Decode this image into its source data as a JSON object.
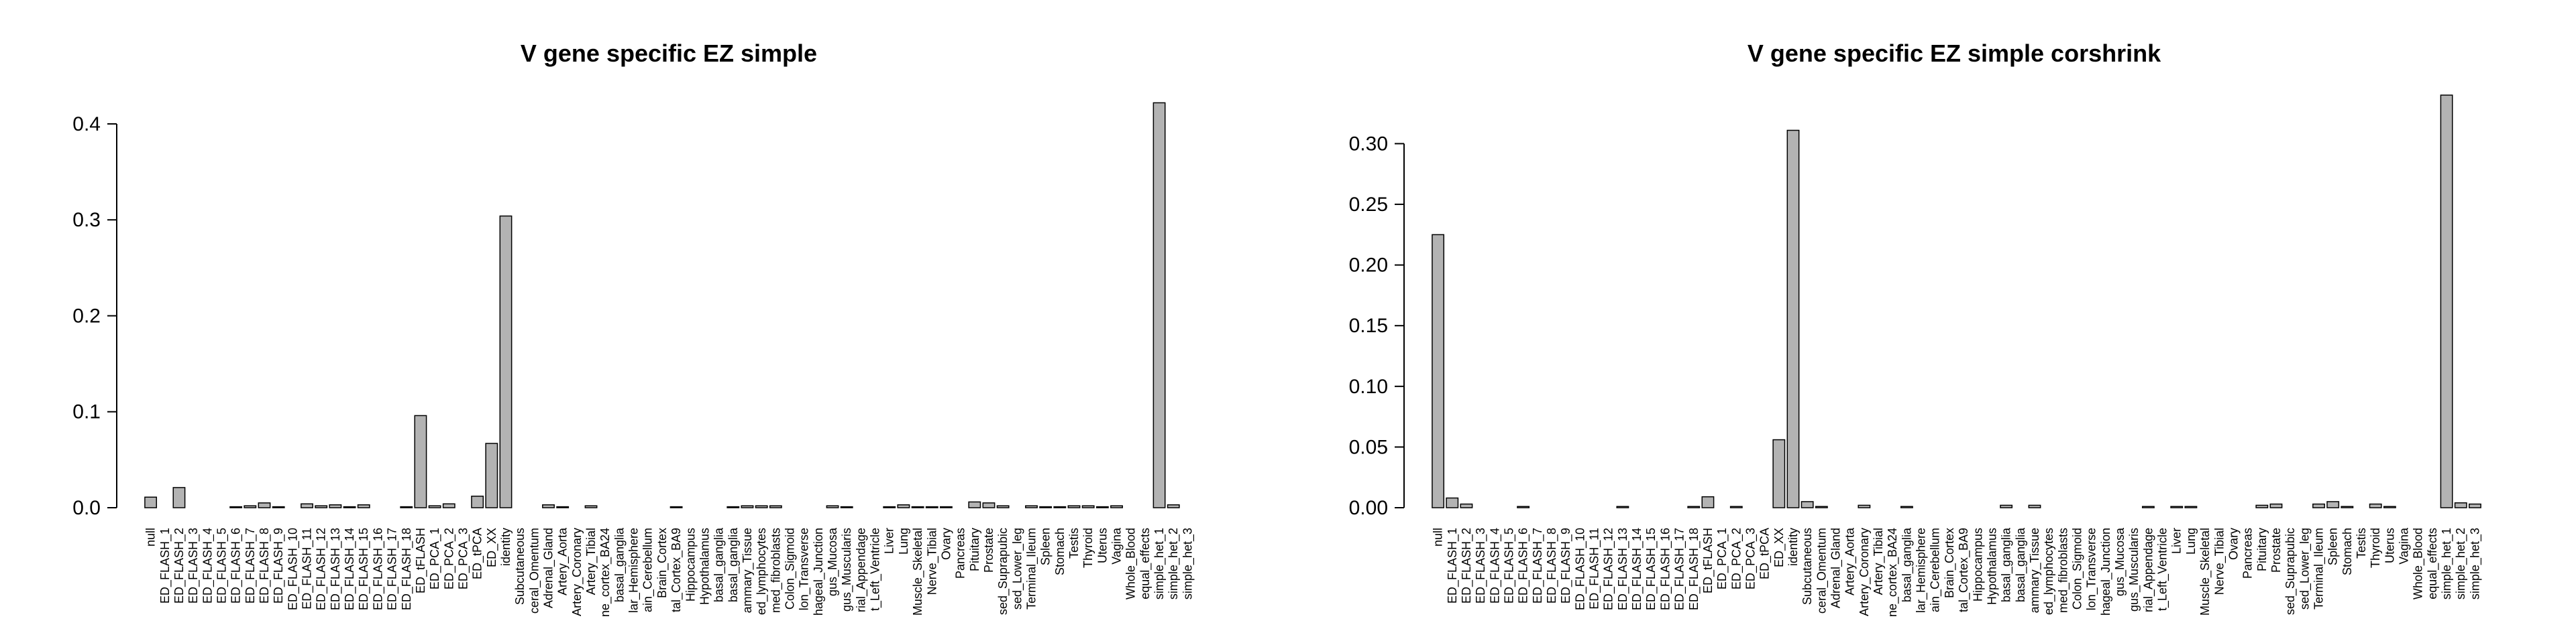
{
  "chart_data": [
    {
      "type": "bar",
      "title": "V gene specific EZ simple",
      "xlabel": "",
      "ylabel": "",
      "ylim": [
        0,
        0.43
      ],
      "yticks": [
        0.0,
        0.1,
        0.2,
        0.3,
        0.4
      ],
      "ytick_labels": [
        "0.0",
        "0.1",
        "0.2",
        "0.3",
        "0.4"
      ],
      "bar_color": "#b3b3b3",
      "categories": [
        "null",
        "ED_FLASH_1",
        "ED_FLASH_2",
        "ED_FLASH_3",
        "ED_FLASH_4",
        "ED_FLASH_5",
        "ED_FLASH_6",
        "ED_FLASH_7",
        "ED_FLASH_8",
        "ED_FLASH_9",
        "ED_FLASH_10",
        "ED_FLASH_11",
        "ED_FLASH_12",
        "ED_FLASH_13",
        "ED_FLASH_14",
        "ED_FLASH_15",
        "ED_FLASH_16",
        "ED_FLASH_17",
        "ED_FLASH_18",
        "ED_tFLASH",
        "ED_PCA_1",
        "ED_PCA_2",
        "ED_PCA_3",
        "ED_tPCA",
        "ED_XX",
        "identity",
        "Subcutaneous",
        "ceral_Omentum",
        "Adrenal_Gland",
        "Artery_Aorta",
        "Artery_Coronary",
        "Artery_Tibial",
        "ne_cortex_BA24",
        "basal_ganglia",
        "lar_Hemisphere",
        "ain_Cerebellum",
        "Brain_Cortex",
        "tal_Cortex_BA9",
        "Hippocampus",
        "Hypothalamus",
        "basal_ganglia",
        "basal_ganglia",
        "ammary_Tissue",
        "ed_lymphocytes",
        "med_fibroblasts",
        "Colon_Sigmoid",
        "lon_Transverse",
        "hageal_Junction",
        "gus_Mucosa",
        "gus_Muscularis",
        "rial_Appendage",
        "t_Left_Ventricle",
        "Liver",
        "Lung",
        "Muscle_Skeletal",
        "Nerve_Tibial",
        "Ovary",
        "Pancreas",
        "Pituitary",
        "Prostate",
        "sed_Suprapubic",
        "sed_Lower_leg",
        "Terminal_Ileum",
        "Spleen",
        "Stomach",
        "Testis",
        "Thyroid",
        "Uterus",
        "Vagina",
        "Whole_Blood",
        "equal_effects",
        "simple_het_1",
        "simple_het_2",
        "simple_het_3"
      ],
      "values": [
        0.011,
        0.0,
        0.021,
        0.0,
        0.0,
        0.0,
        0.001,
        0.002,
        0.005,
        0.001,
        0.0,
        0.004,
        0.002,
        0.003,
        0.001,
        0.003,
        0.0,
        0.0,
        0.001,
        0.096,
        0.002,
        0.004,
        0.0,
        0.012,
        0.067,
        0.304,
        0.0,
        0.0,
        0.003,
        0.001,
        0.0,
        0.002,
        0.0,
        0.0,
        0.0,
        0.0,
        0.0,
        0.001,
        0.0,
        0.0,
        0.0,
        0.001,
        0.002,
        0.002,
        0.002,
        0.0,
        0.0,
        0.0,
        0.002,
        0.001,
        0.0,
        0.0,
        0.001,
        0.003,
        0.001,
        0.001,
        0.001,
        0.0,
        0.006,
        0.005,
        0.002,
        0.0,
        0.002,
        0.001,
        0.001,
        0.002,
        0.002,
        0.001,
        0.002,
        0.0,
        0.0,
        0.422,
        0.003,
        0.0
      ]
    },
    {
      "type": "bar",
      "title": "V gene specific EZ simple corshrink",
      "xlabel": "",
      "ylabel": "",
      "ylim": [
        0,
        0.34
      ],
      "yticks": [
        0.0,
        0.05,
        0.1,
        0.15,
        0.2,
        0.25,
        0.3
      ],
      "ytick_labels": [
        "0.00",
        "0.05",
        "0.10",
        "0.15",
        "0.20",
        "0.25",
        "0.30"
      ],
      "bar_color": "#b3b3b3",
      "categories": [
        "null",
        "ED_FLASH_1",
        "ED_FLASH_2",
        "ED_FLASH_3",
        "ED_FLASH_4",
        "ED_FLASH_5",
        "ED_FLASH_6",
        "ED_FLASH_7",
        "ED_FLASH_8",
        "ED_FLASH_9",
        "ED_FLASH_10",
        "ED_FLASH_11",
        "ED_FLASH_12",
        "ED_FLASH_13",
        "ED_FLASH_14",
        "ED_FLASH_15",
        "ED_FLASH_16",
        "ED_FLASH_17",
        "ED_FLASH_18",
        "ED_tFLASH",
        "ED_PCA_1",
        "ED_PCA_2",
        "ED_PCA_3",
        "ED_tPCA",
        "ED_XX",
        "identity",
        "Subcutaneous",
        "ceral_Omentum",
        "Adrenal_Gland",
        "Artery_Aorta",
        "Artery_Coronary",
        "Artery_Tibial",
        "ne_cortex_BA24",
        "basal_ganglia",
        "lar_Hemisphere",
        "ain_Cerebellum",
        "Brain_Cortex",
        "tal_Cortex_BA9",
        "Hippocampus",
        "Hypothalamus",
        "basal_ganglia",
        "basal_ganglia",
        "ammary_Tissue",
        "ed_lymphocytes",
        "med_fibroblasts",
        "Colon_Sigmoid",
        "lon_Transverse",
        "hageal_Junction",
        "gus_Mucosa",
        "gus_Muscularis",
        "rial_Appendage",
        "t_Left_Ventricle",
        "Liver",
        "Lung",
        "Muscle_Skeletal",
        "Nerve_Tibial",
        "Ovary",
        "Pancreas",
        "Pituitary",
        "Prostate",
        "sed_Suprapubic",
        "sed_Lower_leg",
        "Terminal_Ileum",
        "Spleen",
        "Stomach",
        "Testis",
        "Thyroid",
        "Uterus",
        "Vagina",
        "Whole_Blood",
        "equal_effects",
        "simple_het_1",
        "simple_het_2",
        "simple_het_3"
      ],
      "values": [
        0.225,
        0.008,
        0.003,
        0.0,
        0.0,
        0.0,
        0.001,
        0.0,
        0.0,
        0.0,
        0.0,
        0.0,
        0.0,
        0.001,
        0.0,
        0.0,
        0.0,
        0.0,
        0.001,
        0.009,
        0.0,
        0.001,
        0.0,
        0.0,
        0.056,
        0.311,
        0.005,
        0.001,
        0.0,
        0.0,
        0.002,
        0.0,
        0.0,
        0.001,
        0.0,
        0.0,
        0.0,
        0.0,
        0.0,
        0.0,
        0.002,
        0.0,
        0.002,
        0.0,
        0.0,
        0.0,
        0.0,
        0.0,
        0.0,
        0.0,
        0.001,
        0.0,
        0.001,
        0.001,
        0.0,
        0.0,
        0.0,
        0.0,
        0.002,
        0.003,
        0.0,
        0.0,
        0.003,
        0.005,
        0.001,
        0.0,
        0.003,
        0.001,
        0.0,
        0.0,
        0.0,
        0.34,
        0.004,
        0.003
      ]
    }
  ]
}
